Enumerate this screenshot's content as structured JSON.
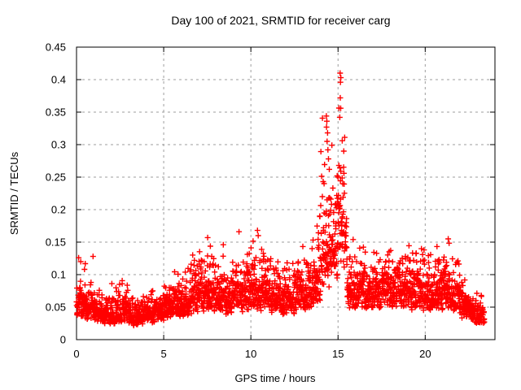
{
  "title": "Day 100 of 2021, SRMTID for receiver carg",
  "chart_data": {
    "type": "scatter",
    "title": "Day 100 of 2021, SRMTID for receiver carg",
    "xlabel": "GPS time / hours",
    "ylabel": "SRMTID / TECUs",
    "xlim": [
      0,
      24
    ],
    "ylim": [
      0,
      0.45
    ],
    "grid": true,
    "legend": "none",
    "xticks": {
      "values": [
        0,
        5,
        10,
        15,
        20
      ],
      "labels": [
        "0",
        "5",
        "10",
        "15",
        "20"
      ]
    },
    "yticks": {
      "values": [
        0,
        0.05,
        0.1,
        0.15,
        0.2,
        0.25,
        0.3,
        0.35,
        0.4,
        0.45
      ],
      "labels": [
        "0",
        "0.05",
        "0.1",
        "0.15",
        "0.2",
        "0.25",
        "0.3",
        "0.35",
        "0.4",
        "0.45"
      ]
    },
    "marker": {
      "symbol": "plus",
      "color": "#ff0000",
      "size": 7
    },
    "grid_color": "#9e9e9e",
    "axis_color": "#000000",
    "series_name": "SRMTID",
    "envelope_comment": "dense 30s-cadence scatter; segments [t_start,t_end,n_points,band_min,band_max,tail_max,tail_prob] read from the plot",
    "envelope": [
      [
        0.0,
        0.5,
        60,
        0.03,
        0.085,
        0.125,
        0.08
      ],
      [
        0.5,
        1.0,
        60,
        0.028,
        0.08,
        0.125,
        0.06
      ],
      [
        1.0,
        1.5,
        55,
        0.025,
        0.07,
        0.095,
        0.05
      ],
      [
        1.5,
        2.0,
        55,
        0.022,
        0.065,
        0.09,
        0.04
      ],
      [
        2.0,
        2.5,
        55,
        0.022,
        0.068,
        0.09,
        0.05
      ],
      [
        2.5,
        3.0,
        55,
        0.022,
        0.07,
        0.095,
        0.05
      ],
      [
        3.0,
        3.5,
        55,
        0.02,
        0.062,
        0.085,
        0.04
      ],
      [
        3.5,
        4.0,
        55,
        0.02,
        0.06,
        0.08,
        0.04
      ],
      [
        4.0,
        4.5,
        55,
        0.022,
        0.068,
        0.095,
        0.05
      ],
      [
        4.5,
        5.0,
        55,
        0.025,
        0.07,
        0.09,
        0.05
      ],
      [
        5.0,
        5.5,
        60,
        0.03,
        0.08,
        0.1,
        0.05
      ],
      [
        5.5,
        6.0,
        60,
        0.03,
        0.085,
        0.105,
        0.06
      ],
      [
        6.0,
        6.5,
        60,
        0.032,
        0.09,
        0.11,
        0.06
      ],
      [
        6.5,
        7.0,
        60,
        0.035,
        0.105,
        0.14,
        0.08
      ],
      [
        7.0,
        7.5,
        60,
        0.04,
        0.12,
        0.15,
        0.1
      ],
      [
        7.5,
        8.0,
        60,
        0.04,
        0.115,
        0.155,
        0.08
      ],
      [
        8.0,
        8.5,
        60,
        0.035,
        0.1,
        0.145,
        0.07
      ],
      [
        8.5,
        9.0,
        60,
        0.035,
        0.1,
        0.125,
        0.06
      ],
      [
        9.0,
        9.5,
        60,
        0.038,
        0.105,
        0.13,
        0.06
      ],
      [
        9.5,
        10.0,
        60,
        0.038,
        0.105,
        0.14,
        0.07
      ],
      [
        10.0,
        10.5,
        60,
        0.04,
        0.115,
        0.165,
        0.08
      ],
      [
        10.5,
        11.0,
        60,
        0.04,
        0.12,
        0.155,
        0.08
      ],
      [
        11.0,
        11.5,
        60,
        0.038,
        0.11,
        0.14,
        0.07
      ],
      [
        11.5,
        12.0,
        60,
        0.036,
        0.105,
        0.135,
        0.06
      ],
      [
        12.0,
        12.5,
        60,
        0.038,
        0.11,
        0.145,
        0.07
      ],
      [
        12.5,
        13.0,
        60,
        0.04,
        0.115,
        0.145,
        0.08
      ],
      [
        13.0,
        13.5,
        60,
        0.042,
        0.115,
        0.14,
        0.07
      ],
      [
        13.5,
        14.0,
        60,
        0.05,
        0.14,
        0.19,
        0.1
      ],
      [
        14.0,
        14.5,
        60,
        0.07,
        0.2,
        0.345,
        0.15
      ],
      [
        14.5,
        15.0,
        60,
        0.09,
        0.22,
        0.3,
        0.12
      ],
      [
        15.0,
        15.5,
        60,
        0.09,
        0.25,
        0.41,
        0.12
      ],
      [
        15.5,
        16.0,
        60,
        0.045,
        0.12,
        0.16,
        0.1
      ],
      [
        16.0,
        16.5,
        60,
        0.045,
        0.12,
        0.15,
        0.07
      ],
      [
        16.5,
        17.0,
        60,
        0.04,
        0.11,
        0.14,
        0.06
      ],
      [
        17.0,
        17.5,
        60,
        0.042,
        0.115,
        0.15,
        0.07
      ],
      [
        17.5,
        18.0,
        60,
        0.045,
        0.12,
        0.15,
        0.08
      ],
      [
        18.0,
        18.5,
        60,
        0.045,
        0.12,
        0.15,
        0.08
      ],
      [
        18.5,
        19.0,
        60,
        0.045,
        0.125,
        0.155,
        0.08
      ],
      [
        19.0,
        19.5,
        60,
        0.042,
        0.12,
        0.16,
        0.08
      ],
      [
        19.5,
        20.0,
        60,
        0.04,
        0.115,
        0.15,
        0.07
      ],
      [
        20.0,
        20.5,
        60,
        0.04,
        0.11,
        0.14,
        0.07
      ],
      [
        20.5,
        21.0,
        60,
        0.042,
        0.115,
        0.145,
        0.07
      ],
      [
        21.0,
        21.5,
        60,
        0.045,
        0.12,
        0.155,
        0.08
      ],
      [
        21.5,
        22.0,
        60,
        0.035,
        0.1,
        0.13,
        0.06
      ],
      [
        22.0,
        22.5,
        60,
        0.028,
        0.085,
        0.11,
        0.05
      ],
      [
        22.5,
        23.0,
        60,
        0.022,
        0.065,
        0.085,
        0.04
      ],
      [
        23.0,
        23.4,
        45,
        0.02,
        0.055,
        0.07,
        0.04
      ]
    ],
    "outliers": [
      [
        15.12,
        0.41
      ],
      [
        15.16,
        0.403
      ],
      [
        15.14,
        0.396
      ],
      [
        15.13,
        0.372
      ],
      [
        15.15,
        0.356
      ],
      [
        15.1,
        0.342
      ],
      [
        15.24,
        0.306
      ],
      [
        15.33,
        0.29
      ],
      [
        15.05,
        0.268
      ],
      [
        14.95,
        0.252
      ],
      [
        14.33,
        0.344
      ],
      [
        14.36,
        0.336
      ],
      [
        14.34,
        0.327
      ],
      [
        14.4,
        0.318
      ],
      [
        14.37,
        0.305
      ],
      [
        14.42,
        0.292
      ],
      [
        14.45,
        0.278
      ],
      [
        14.5,
        0.262
      ],
      [
        14.2,
        0.24
      ],
      [
        14.1,
        0.22
      ],
      [
        13.95,
        0.19
      ],
      [
        9.32,
        0.166
      ],
      [
        10.38,
        0.168
      ],
      [
        10.42,
        0.16
      ],
      [
        7.52,
        0.157
      ],
      [
        0.12,
        0.126
      ],
      [
        0.95,
        0.128
      ],
      [
        21.32,
        0.155
      ],
      [
        8.42,
        0.146
      ]
    ]
  }
}
